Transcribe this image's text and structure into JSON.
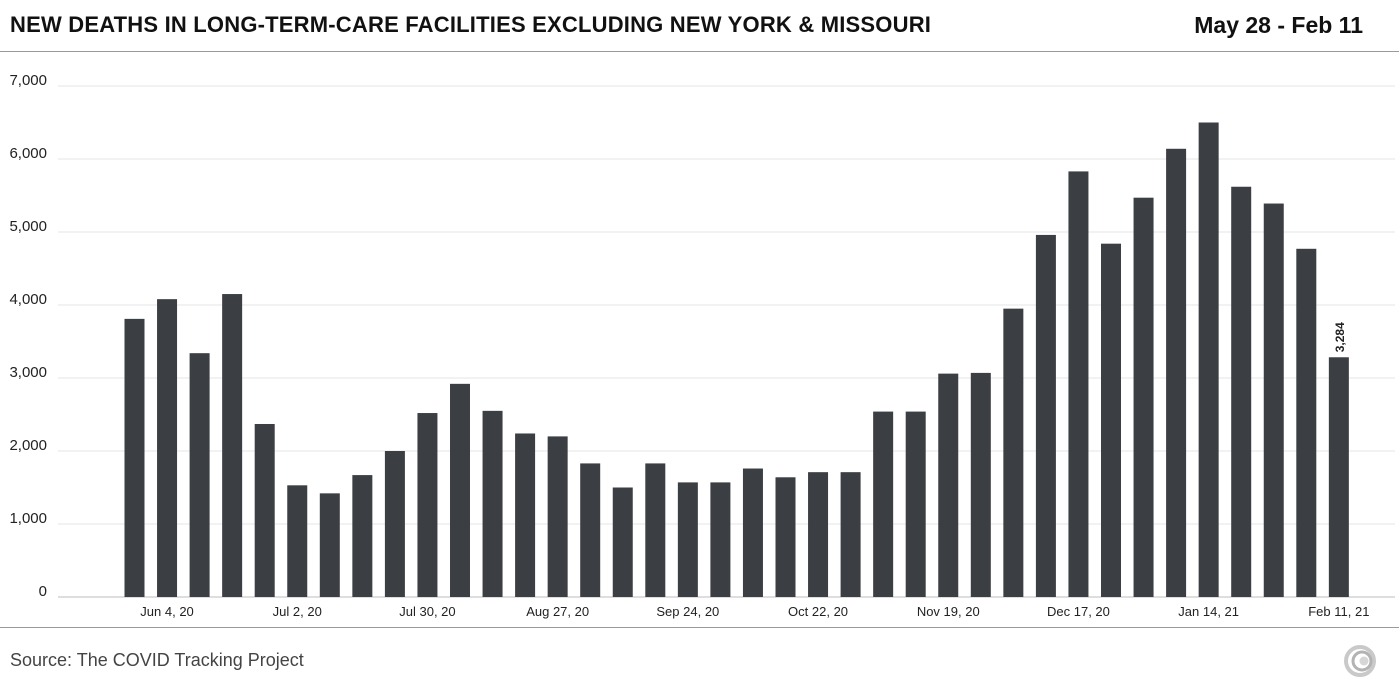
{
  "header": {
    "title": "NEW DEATHS IN LONG-TERM-CARE FACILITIES EXCLUDING NEW YORK & MISSOURI",
    "date_range": "May 28 - Feb 11"
  },
  "footer": {
    "source": "Source: The COVID Tracking Project"
  },
  "colors": {
    "bar": "#3b3e43",
    "grid": "#e6e6e6",
    "axis": "#bdbdbd"
  },
  "chart_data": {
    "type": "bar",
    "title": "NEW DEATHS IN LONG-TERM-CARE FACILITIES EXCLUDING NEW YORK & MISSOURI",
    "xlabel": "",
    "ylabel": "",
    "ylim": [
      0,
      7000
    ],
    "grid": true,
    "y_ticks": [
      "0",
      "1,000",
      "2,000",
      "3,000",
      "4,000",
      "5,000",
      "6,000",
      "7,000"
    ],
    "x_tick_labels": [
      "Jun 4, 20",
      "Jul 2, 20",
      "Jul 30, 20",
      "Aug 27, 20",
      "Sep 24, 20",
      "Oct 22, 20",
      "Nov 19, 20",
      "Dec 17, 20",
      "Jan 14, 21",
      "Feb 11, 21"
    ],
    "values": [
      3810,
      4080,
      3340,
      4150,
      2370,
      1530,
      1420,
      1670,
      2000,
      2520,
      2920,
      2550,
      2240,
      2200,
      1830,
      1500,
      1830,
      1570,
      1570,
      1760,
      1640,
      1710,
      1710,
      2540,
      2540,
      3060,
      3070,
      3950,
      4960,
      5830,
      4840,
      5470,
      6140,
      6500,
      5620,
      5390,
      4770,
      3284
    ],
    "data_label": {
      "text": "3,284",
      "index": 37
    }
  }
}
